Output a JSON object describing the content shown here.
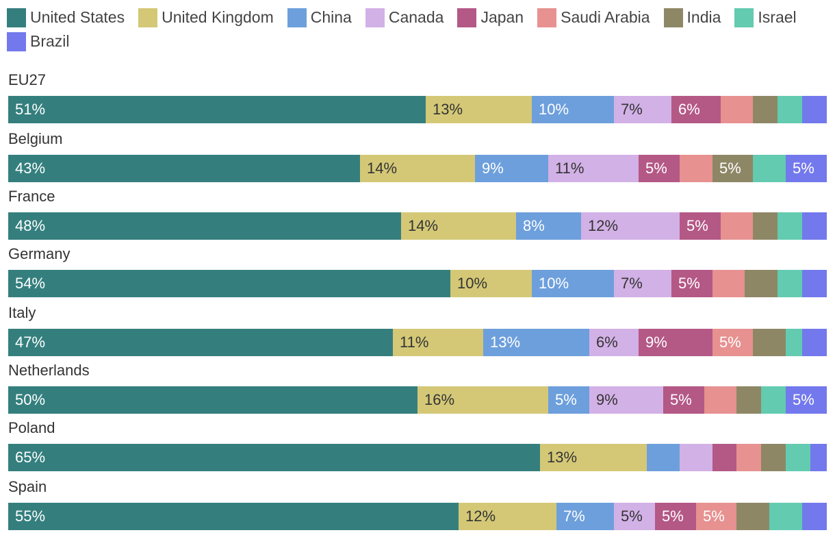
{
  "chart_data": {
    "type": "bar",
    "orientation": "horizontal",
    "stacked": true,
    "normalized": true,
    "title": "",
    "xlabel": "",
    "ylabel": "",
    "legend_position": "top",
    "series": [
      {
        "name": "United States",
        "color": "#347f7e",
        "label_color": "light"
      },
      {
        "name": "United Kingdom",
        "color": "#d4c877",
        "label_color": "dark"
      },
      {
        "name": "China",
        "color": "#6d9fdc",
        "label_color": "light"
      },
      {
        "name": "Canada",
        "color": "#d2b1e6",
        "label_color": "dark"
      },
      {
        "name": "Japan",
        "color": "#b45886",
        "label_color": "light"
      },
      {
        "name": "Saudi Arabia",
        "color": "#e79191",
        "label_color": "light"
      },
      {
        "name": "India",
        "color": "#8e8766",
        "label_color": "light"
      },
      {
        "name": "Israel",
        "color": "#63cbb0",
        "label_color": "light"
      },
      {
        "name": "Brazil",
        "color": "#7379ec",
        "label_color": "light"
      }
    ],
    "categories": [
      "EU27",
      "Belgium",
      "France",
      "Germany",
      "Italy",
      "Netherlands",
      "Poland",
      "Spain"
    ],
    "values": [
      [
        51,
        13,
        10,
        7,
        6,
        4,
        3,
        3,
        3
      ],
      [
        43,
        14,
        9,
        11,
        5,
        4,
        5,
        4,
        5
      ],
      [
        48,
        14,
        8,
        12,
        5,
        4,
        3,
        3,
        3
      ],
      [
        54,
        10,
        10,
        7,
        5,
        4,
        4,
        3,
        3
      ],
      [
        47,
        11,
        13,
        6,
        9,
        5,
        4,
        2,
        3
      ],
      [
        50,
        16,
        5,
        9,
        5,
        4,
        3,
        3,
        5
      ],
      [
        65,
        13,
        4,
        4,
        3,
        3,
        3,
        3,
        2
      ],
      [
        55,
        12,
        7,
        5,
        5,
        5,
        4,
        4,
        3
      ]
    ],
    "data_labels": [
      [
        "51%",
        "13%",
        "10%",
        "7%",
        "6%",
        "",
        "",
        "",
        ""
      ],
      [
        "43%",
        "14%",
        "9%",
        "11%",
        "5%",
        "",
        "5%",
        "",
        "5%"
      ],
      [
        "48%",
        "14%",
        "8%",
        "12%",
        "5%",
        "",
        "",
        "",
        ""
      ],
      [
        "54%",
        "10%",
        "10%",
        "7%",
        "5%",
        "",
        "",
        "",
        ""
      ],
      [
        "47%",
        "11%",
        "13%",
        "6%",
        "9%",
        "5%",
        "",
        "",
        ""
      ],
      [
        "50%",
        "16%",
        "5%",
        "9%",
        "5%",
        "",
        "",
        "",
        "5%"
      ],
      [
        "65%",
        "13%",
        "",
        "",
        "",
        "",
        "",
        "",
        ""
      ],
      [
        "55%",
        "12%",
        "7%",
        "5%",
        "5%",
        "5%",
        "",
        "",
        ""
      ]
    ]
  }
}
